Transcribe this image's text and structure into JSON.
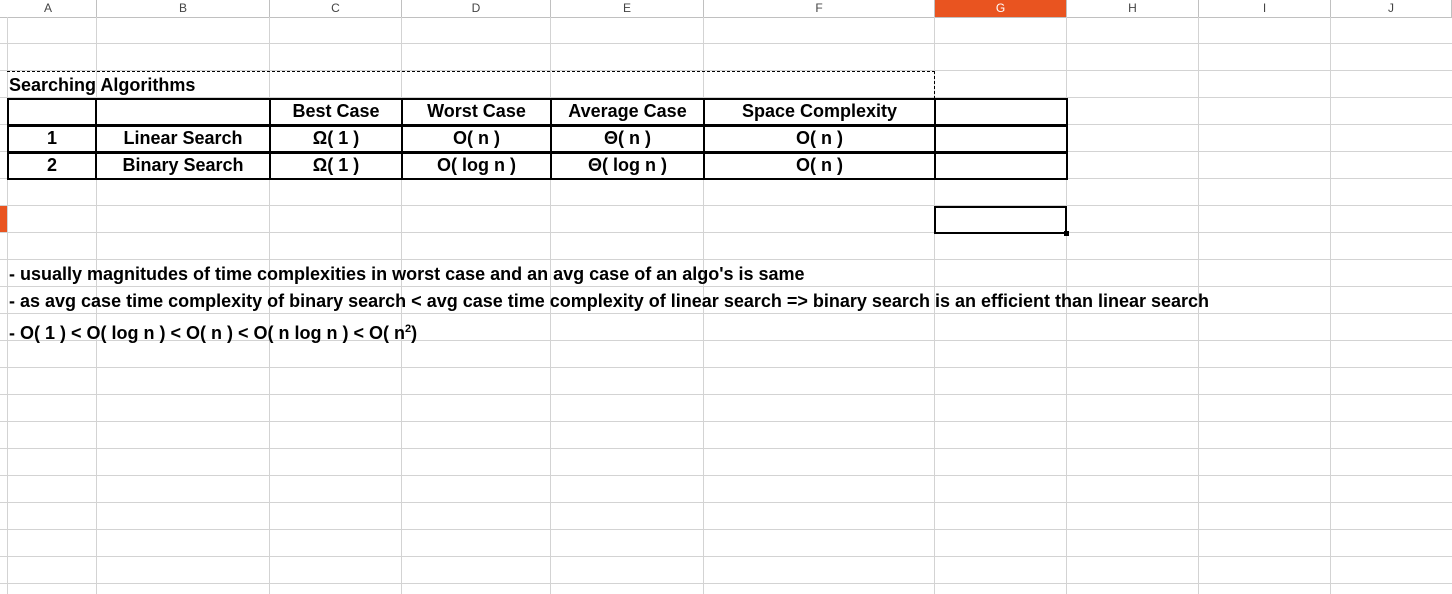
{
  "columns": [
    {
      "label": "A"
    },
    {
      "label": "B"
    },
    {
      "label": "C"
    },
    {
      "label": "D"
    },
    {
      "label": "E"
    },
    {
      "label": "F"
    },
    {
      "label": "G"
    },
    {
      "label": "H"
    },
    {
      "label": "I"
    },
    {
      "label": "J"
    }
  ],
  "selected_column": "G",
  "sheet": {
    "title": "Searching Algorithms",
    "headers": {
      "index": "",
      "name": "",
      "best": "Best Case",
      "worst": "Worst Case",
      "average": "Average Case",
      "space": "Space Complexity"
    },
    "rows": [
      {
        "index": "1",
        "name": "Linear Search",
        "best": "Ω( 1 )",
        "worst": "O( n )",
        "average": "Θ( n )",
        "space": "O( n )"
      },
      {
        "index": "2",
        "name": "Binary Search",
        "best": "Ω( 1 )",
        "worst": "O( log n )",
        "average": "Θ( log n )",
        "space": "O( n )"
      }
    ],
    "notes": [
      "- usually magnitudes of time complexities in worst case and an avg case of an algo's is same",
      "- as avg case time complexity of binary search < avg case time complexity of linear search => binary search is an efficient than linear search",
      "- O( 1 ) < O( log n ) < O( n ) < O( n log n ) < O( n",
      "2",
      ")"
    ]
  },
  "colors": {
    "accent": "#e95420",
    "grid": "#d3d3d3"
  }
}
